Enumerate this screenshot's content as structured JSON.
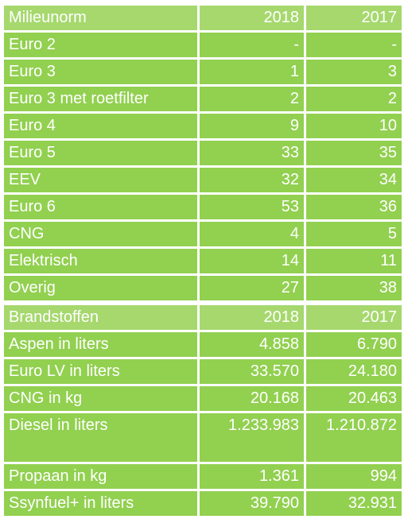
{
  "table1": {
    "header": [
      "Milieunorm",
      "2018",
      "2017"
    ],
    "rows": [
      [
        "Euro 2",
        "-",
        "-"
      ],
      [
        "Euro 3",
        "1",
        "3"
      ],
      [
        "Euro 3 met roetfilter",
        "2",
        "2"
      ],
      [
        "Euro 4",
        "9",
        "10"
      ],
      [
        "Euro 5",
        "33",
        "35"
      ],
      [
        "EEV",
        "32",
        "34"
      ],
      [
        "Euro 6",
        "53",
        "36"
      ],
      [
        "CNG",
        "4",
        "5"
      ],
      [
        "Elektrisch",
        "14",
        "11"
      ],
      [
        "Overig",
        "27",
        "38"
      ]
    ]
  },
  "table2": {
    "header": [
      "Brandstoffen",
      "2018",
      "2017"
    ],
    "rows": [
      [
        "Aspen in liters",
        "4.858",
        "6.790"
      ],
      [
        "Euro LV in liters",
        "33.570",
        "24.180"
      ],
      [
        "CNG in kg",
        "20.168",
        "20.463"
      ],
      [
        "Diesel in liters",
        "1.233.983",
        "1.210.872"
      ],
      [
        "Propaan in kg",
        "1.361",
        "994"
      ],
      [
        "Ssynfuel+ in liters",
        "39.790",
        "32.931"
      ]
    ]
  },
  "colors": {
    "cell": "#92d050",
    "text": "#ffffff"
  }
}
